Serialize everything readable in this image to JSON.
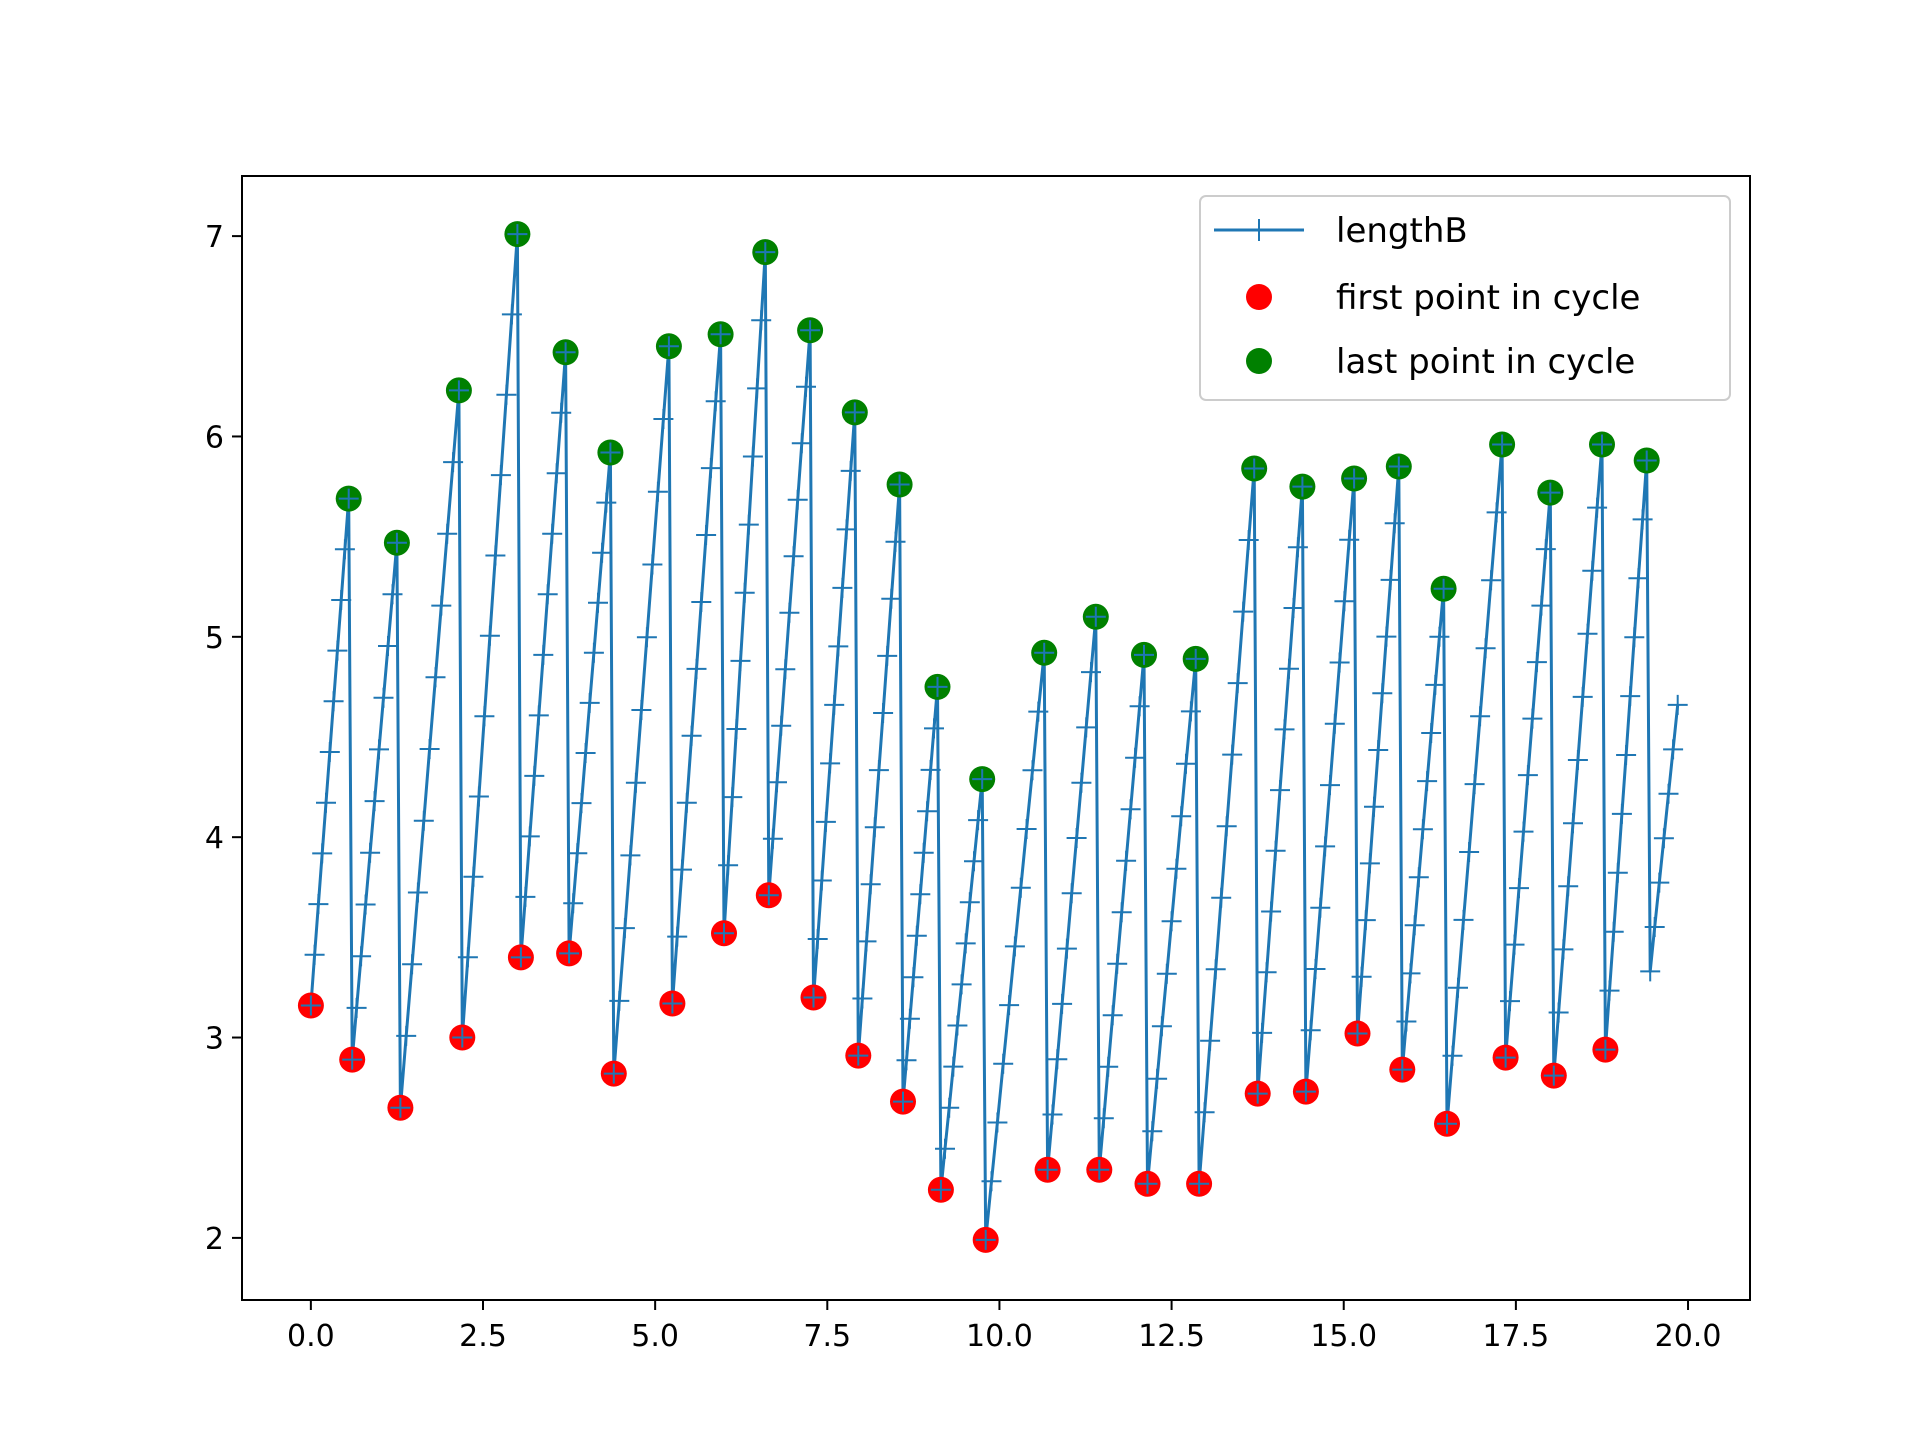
{
  "chart_data": {
    "type": "line",
    "title": "",
    "xlabel": "",
    "ylabel": "",
    "xlim": [
      -1.0,
      20.9
    ],
    "ylim": [
      1.69,
      7.3
    ],
    "xticks": [
      0.0,
      2.5,
      5.0,
      7.5,
      10.0,
      12.5,
      15.0,
      17.5,
      20.0
    ],
    "xtick_labels": [
      "0.0",
      "2.5",
      "5.0",
      "7.5",
      "10.0",
      "12.5",
      "15.0",
      "17.5",
      "20.0"
    ],
    "yticks": [
      2,
      3,
      4,
      5,
      6,
      7
    ],
    "ytick_labels": [
      "2",
      "3",
      "4",
      "5",
      "6",
      "7"
    ],
    "grid": false,
    "legend_position": "top-right",
    "colors": {
      "line": "#1f77b4",
      "first": "#ff0000",
      "last": "#008000"
    },
    "cycles": [
      {
        "first": [
          0.0,
          3.16
        ],
        "last": [
          0.55,
          5.69
        ]
      },
      {
        "first": [
          0.6,
          2.89
        ],
        "last": [
          1.25,
          5.47
        ]
      },
      {
        "first": [
          1.3,
          2.65
        ],
        "last": [
          2.15,
          6.23
        ]
      },
      {
        "first": [
          2.2,
          3.0
        ],
        "last": [
          3.0,
          7.01
        ]
      },
      {
        "first": [
          3.05,
          3.4
        ],
        "last": [
          3.7,
          6.42
        ]
      },
      {
        "first": [
          3.75,
          3.42
        ],
        "last": [
          4.35,
          5.92
        ]
      },
      {
        "first": [
          4.4,
          2.82
        ],
        "last": [
          5.2,
          6.45
        ]
      },
      {
        "first": [
          5.25,
          3.17
        ],
        "last": [
          5.95,
          6.51
        ]
      },
      {
        "first": [
          6.0,
          3.52
        ],
        "last": [
          6.6,
          6.92
        ]
      },
      {
        "first": [
          6.65,
          3.71
        ],
        "last": [
          7.25,
          6.53
        ]
      },
      {
        "first": [
          7.3,
          3.2
        ],
        "last": [
          7.9,
          6.12
        ]
      },
      {
        "first": [
          7.95,
          2.91
        ],
        "last": [
          8.55,
          5.76
        ]
      },
      {
        "first": [
          8.6,
          2.68
        ],
        "last": [
          9.1,
          4.75
        ]
      },
      {
        "first": [
          9.15,
          2.24
        ],
        "last": [
          9.75,
          4.29
        ]
      },
      {
        "first": [
          9.8,
          1.99
        ],
        "last": [
          10.65,
          4.92
        ]
      },
      {
        "first": [
          10.7,
          2.34
        ],
        "last": [
          11.4,
          5.1
        ]
      },
      {
        "first": [
          11.45,
          2.34
        ],
        "last": [
          12.1,
          4.91
        ]
      },
      {
        "first": [
          12.15,
          2.27
        ],
        "last": [
          12.85,
          4.89
        ]
      },
      {
        "first": [
          12.9,
          2.27
        ],
        "last": [
          13.7,
          5.84
        ]
      },
      {
        "first": [
          13.75,
          2.72
        ],
        "last": [
          14.4,
          5.75
        ]
      },
      {
        "first": [
          14.45,
          2.73
        ],
        "last": [
          15.15,
          5.79
        ]
      },
      {
        "first": [
          15.2,
          3.02
        ],
        "last": [
          15.8,
          5.85
        ]
      },
      {
        "first": [
          15.85,
          2.84
        ],
        "last": [
          16.45,
          5.24
        ]
      },
      {
        "first": [
          16.5,
          2.57
        ],
        "last": [
          17.3,
          5.96
        ]
      },
      {
        "first": [
          17.35,
          2.9
        ],
        "last": [
          18.0,
          5.72
        ]
      },
      {
        "first": [
          18.05,
          2.81
        ],
        "last": [
          18.75,
          5.96
        ]
      },
      {
        "first": [
          18.8,
          2.94
        ],
        "last": [
          19.4,
          5.88
        ]
      }
    ],
    "tail": [
      [
        19.45,
        3.33
      ],
      [
        19.85,
        4.66
      ]
    ],
    "series": [
      {
        "name": "lengthB",
        "kind": "line",
        "marker": "+"
      },
      {
        "name": "first point in cycle",
        "kind": "scatter"
      },
      {
        "name": "last point in cycle",
        "kind": "scatter"
      }
    ]
  }
}
